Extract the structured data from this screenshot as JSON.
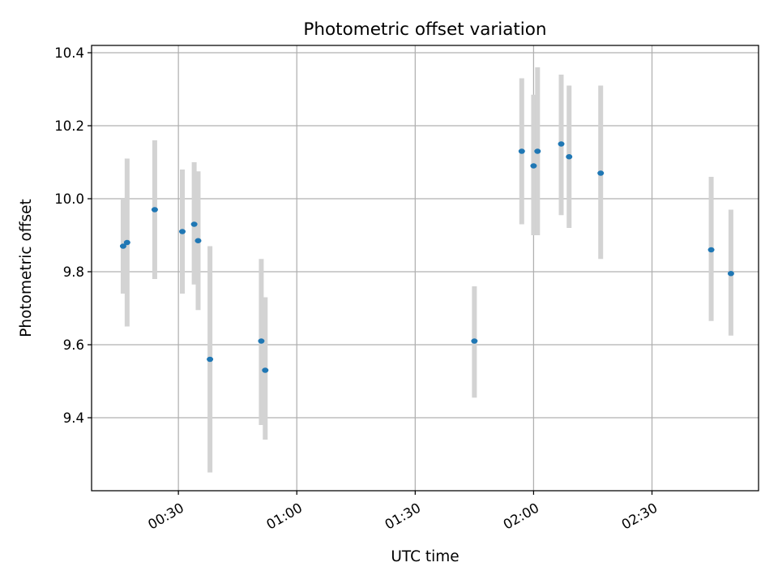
{
  "chart_data": {
    "type": "scatter",
    "title": "Photometric offset variation",
    "xlabel": "UTC time",
    "ylabel": "Photometric offset",
    "x_axis": {
      "type": "time",
      "range": [
        "00:08:00",
        "02:57:00"
      ],
      "ticks": [
        "00:30:00",
        "01:00:00",
        "01:30:00",
        "02:00:00",
        "02:30:00"
      ],
      "tick_labels": [
        "00:30",
        "01:00",
        "01:30",
        "02:00",
        "02:30"
      ]
    },
    "y_axis": {
      "range": [
        9.2,
        10.42
      ],
      "ticks": [
        9.4,
        9.6,
        9.8,
        10.0,
        10.2,
        10.4
      ],
      "tick_labels": [
        "9.4",
        "9.6",
        "9.8",
        "10.0",
        "10.2",
        "10.4"
      ]
    },
    "grid": true,
    "colors": {
      "point": "#1f77b4",
      "errorbar": "#d3d3d3",
      "grid": "#b0b0b0",
      "axes": "#000000"
    },
    "series": [
      {
        "points": [
          {
            "x": "00:16:00",
            "y": 9.87,
            "low": 9.74,
            "high": 10.0
          },
          {
            "x": "00:17:00",
            "y": 9.88,
            "low": 9.65,
            "high": 10.11
          },
          {
            "x": "00:24:00",
            "y": 9.97,
            "low": 9.78,
            "high": 10.16
          },
          {
            "x": "00:31:00",
            "y": 9.91,
            "low": 9.74,
            "high": 10.08
          },
          {
            "x": "00:34:00",
            "y": 9.93,
            "low": 9.765,
            "high": 10.1
          },
          {
            "x": "00:35:00",
            "y": 9.885,
            "low": 9.695,
            "high": 10.075
          },
          {
            "x": "00:38:00",
            "y": 9.56,
            "low": 9.25,
            "high": 9.87
          },
          {
            "x": "00:51:00",
            "y": 9.61,
            "low": 9.38,
            "high": 9.835
          },
          {
            "x": "00:52:00",
            "y": 9.53,
            "low": 9.34,
            "high": 9.73
          },
          {
            "x": "01:45:00",
            "y": 9.61,
            "low": 9.455,
            "high": 9.76
          },
          {
            "x": "01:57:00",
            "y": 10.13,
            "low": 9.93,
            "high": 10.33
          },
          {
            "x": "02:00:00",
            "y": 10.09,
            "low": 9.9,
            "high": 10.285
          },
          {
            "x": "02:01:00",
            "y": 10.13,
            "low": 9.9,
            "high": 10.36
          },
          {
            "x": "02:07:00",
            "y": 10.15,
            "low": 9.955,
            "high": 10.34
          },
          {
            "x": "02:09:00",
            "y": 10.115,
            "low": 9.92,
            "high": 10.31
          },
          {
            "x": "02:17:00",
            "y": 10.07,
            "low": 9.835,
            "high": 10.31
          },
          {
            "x": "02:45:00",
            "y": 9.86,
            "low": 9.665,
            "high": 10.06
          },
          {
            "x": "02:50:00",
            "y": 9.795,
            "low": 9.625,
            "high": 9.97
          }
        ]
      }
    ]
  }
}
